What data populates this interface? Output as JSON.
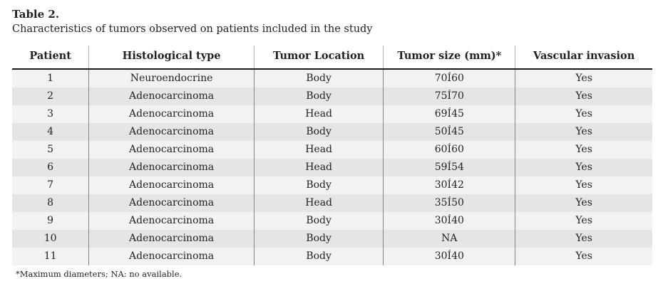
{
  "table": {
    "title": "Table 2.",
    "caption": "Characteristics of tumors observed on patients included in the study",
    "columns": [
      "Patient",
      "Histological type",
      "Tumor Location",
      "Tumor size (mm)*",
      "Vascular invasion"
    ],
    "rows": [
      [
        "1",
        "Neuroendocrine",
        "Body",
        "70Í60",
        "Yes"
      ],
      [
        "2",
        "Adenocarcinoma",
        "Body",
        "75Í70",
        "Yes"
      ],
      [
        "3",
        "Adenocarcinoma",
        "Head",
        "69Í45",
        "Yes"
      ],
      [
        "4",
        "Adenocarcinoma",
        "Body",
        "50Í45",
        "Yes"
      ],
      [
        "5",
        "Adenocarcinoma",
        "Head",
        "60Í60",
        "Yes"
      ],
      [
        "6",
        "Adenocarcinoma",
        "Head",
        "59Í54",
        "Yes"
      ],
      [
        "7",
        "Adenocarcinoma",
        "Body",
        "30Í42",
        "Yes"
      ],
      [
        "8",
        "Adenocarcinoma",
        "Head",
        "35Í50",
        "Yes"
      ],
      [
        "9",
        "Adenocarcinoma",
        "Body",
        "30Í40",
        "Yes"
      ],
      [
        "10",
        "Adenocarcinoma",
        "Body",
        "NA",
        "Yes"
      ],
      [
        "11",
        "Adenocarcinoma",
        "Body",
        "30Í40",
        "Yes"
      ]
    ],
    "footnote": "*Maximum diameters; NA: no available."
  },
  "colors": {
    "row_odd": "#f2f2f2",
    "row_even": "#e5e5e5",
    "header_rule": "#1a1a1a",
    "body_divider": "#858585",
    "header_divider": "#b3b3b3",
    "text": "#231f20"
  }
}
